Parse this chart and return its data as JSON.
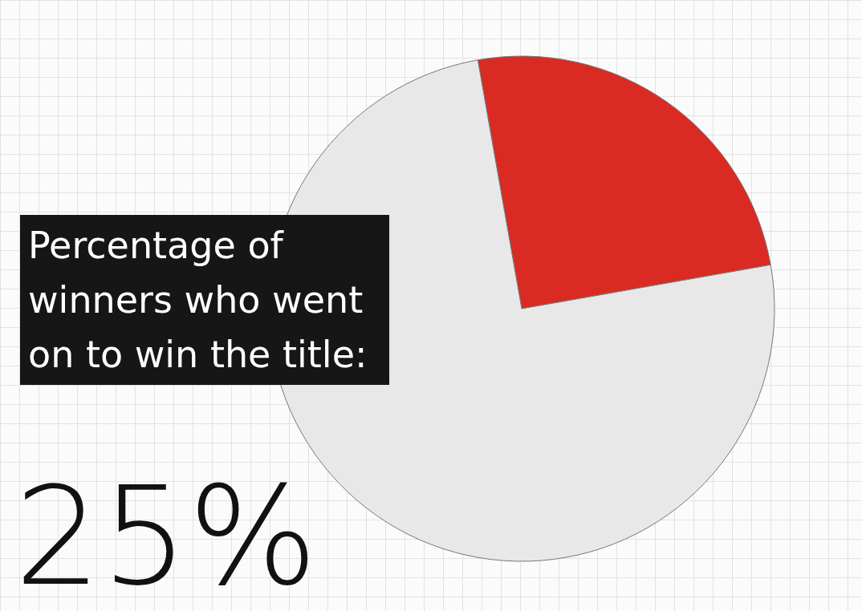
{
  "chart_data": {
    "type": "pie",
    "title": "Percentage of winners who went on to win the title:",
    "categories": [
      null,
      null
    ],
    "values": [
      25,
      75
    ],
    "colors": [
      "#d92b23",
      "#e8e8e8"
    ],
    "annotations": [
      "25%"
    ]
  }
}
